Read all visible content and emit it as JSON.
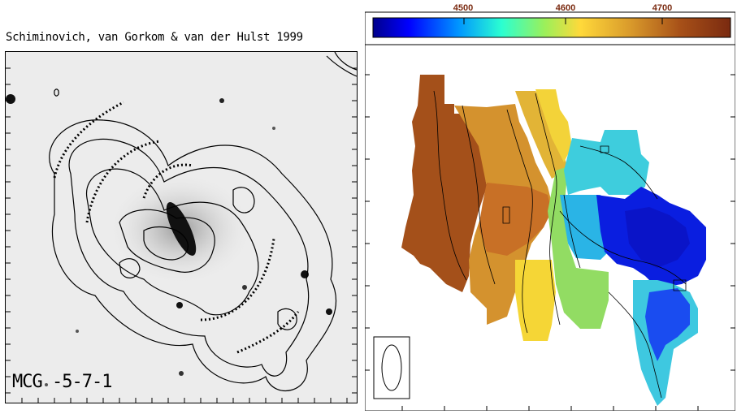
{
  "left_panel": {
    "title": "Schiminovich, van Gorkom & van der Hulst 1999",
    "galaxy_label": "MCG -5-7-1"
  },
  "right_panel": {
    "colorbar": {
      "tick_labels": [
        "4500",
        "4600",
        "4700"
      ],
      "tick_values": [
        4500,
        4600,
        4700
      ],
      "range": [
        4430,
        4750
      ],
      "colors": [
        "#00008c",
        "#0000ff",
        "#0096ff",
        "#2bffd1",
        "#9bf05a",
        "#ffd93a",
        "#d99a2b",
        "#a75018",
        "#7a2a10"
      ]
    }
  },
  "colors": {
    "blue": "#0a14e0",
    "cyan": "#3cc8d8",
    "green": "#8ed860",
    "yellow": "#f4d43a",
    "orange": "#d89830",
    "rust": "#a85018"
  }
}
